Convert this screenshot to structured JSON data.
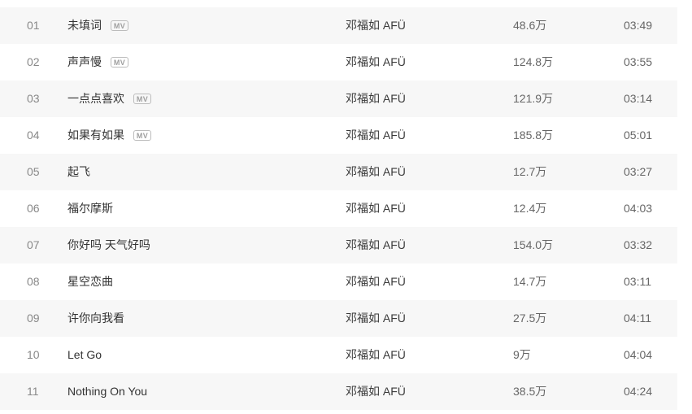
{
  "labels": {
    "mv_badge": "MV"
  },
  "colors": {
    "stripe_background": "#f7f7f7",
    "row_background": "#ffffff",
    "title_text": "#333333",
    "number_text": "#888888",
    "meta_text": "#666666",
    "badge_text": "#9f9f9f",
    "badge_border": "#bcbcbc"
  },
  "tracks": [
    {
      "num": "01",
      "title": "未填词",
      "has_mv": true,
      "artist": "邓福如 AFÜ",
      "plays": "48.6万",
      "duration": "03:49"
    },
    {
      "num": "02",
      "title": "声声慢",
      "has_mv": true,
      "artist": "邓福如 AFÜ",
      "plays": "124.8万",
      "duration": "03:55"
    },
    {
      "num": "03",
      "title": "一点点喜欢",
      "has_mv": true,
      "artist": "邓福如 AFÜ",
      "plays": "121.9万",
      "duration": "03:14"
    },
    {
      "num": "04",
      "title": "如果有如果",
      "has_mv": true,
      "artist": "邓福如 AFÜ",
      "plays": "185.8万",
      "duration": "05:01"
    },
    {
      "num": "05",
      "title": "起飞",
      "has_mv": false,
      "artist": "邓福如 AFÜ",
      "plays": "12.7万",
      "duration": "03:27"
    },
    {
      "num": "06",
      "title": "福尔摩斯",
      "has_mv": false,
      "artist": "邓福如 AFÜ",
      "plays": "12.4万",
      "duration": "04:03"
    },
    {
      "num": "07",
      "title": "你好吗 天气好吗",
      "has_mv": false,
      "artist": "邓福如 AFÜ",
      "plays": "154.0万",
      "duration": "03:32"
    },
    {
      "num": "08",
      "title": "星空恋曲",
      "has_mv": false,
      "artist": "邓福如 AFÜ",
      "plays": "14.7万",
      "duration": "03:11"
    },
    {
      "num": "09",
      "title": "许你向我看",
      "has_mv": false,
      "artist": "邓福如 AFÜ",
      "plays": "27.5万",
      "duration": "04:11"
    },
    {
      "num": "10",
      "title": "Let Go",
      "has_mv": false,
      "artist": "邓福如 AFÜ",
      "plays": "9万",
      "duration": "04:04"
    },
    {
      "num": "11",
      "title": "Nothing On You",
      "has_mv": false,
      "artist": "邓福如 AFÜ",
      "plays": "38.5万",
      "duration": "04:24"
    }
  ]
}
